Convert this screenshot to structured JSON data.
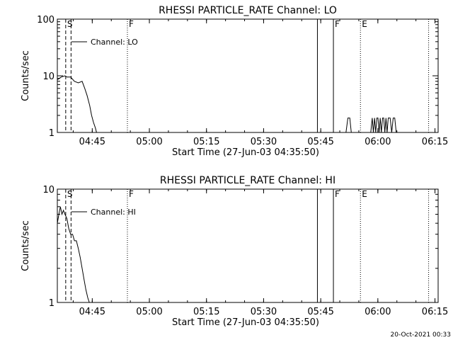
{
  "footer": {
    "timestamp": "20-Oct-2021 00:33"
  },
  "time_axis": {
    "origin_label": "Start Time (27-Jun-03 04:35:50)",
    "xlim_minutes": [
      0,
      100
    ],
    "tick_labels": [
      "04:45",
      "05:00",
      "05:15",
      "05:30",
      "05:45",
      "06:00",
      "06:15"
    ],
    "tick_minutes": [
      9.17,
      24.17,
      39.17,
      54.17,
      69.17,
      84.17,
      99.17
    ]
  },
  "markers": [
    {
      "label": "S",
      "minute": 2.2,
      "style": "dashed"
    },
    {
      "label": "",
      "minute": 3.6,
      "style": "dashed"
    },
    {
      "label": "F",
      "minute": 18.4,
      "style": "dotted"
    },
    {
      "label": "",
      "minute": 68.3,
      "style": "solid"
    },
    {
      "label": "F",
      "minute": 72.5,
      "style": "solid"
    },
    {
      "label": "E",
      "minute": 79.6,
      "style": "dotted"
    },
    {
      "label": "",
      "minute": 97.5,
      "style": "dotted"
    }
  ],
  "chart_data": [
    {
      "type": "line",
      "title": "RHESSI PARTICLE_RATE Channel: LO",
      "xlabel": "Start Time (27-Jun-03 04:35:50)",
      "ylabel": "Counts/sec",
      "y_scale": "log",
      "ylim": [
        1,
        100
      ],
      "y_ticks": [
        1,
        10,
        100
      ],
      "y_tick_labels": [
        "1",
        "10",
        "100"
      ],
      "legend": {
        "position": "top-left",
        "entries": [
          "Channel: LO"
        ]
      },
      "series": [
        {
          "name": "Channel: LO",
          "segments": [
            {
              "x": [
                0.0,
                1.0,
                2.0,
                2.5,
                3.5,
                4.5,
                5.5,
                6.5,
                7.2,
                7.8,
                8.5,
                9.0,
                9.5,
                10.0,
                10.3
              ],
              "y": [
                8.5,
                9.5,
                10.0,
                9.5,
                9.5,
                8.0,
                7.5,
                8.0,
                6.0,
                4.5,
                3.0,
                2.0,
                1.5,
                1.2,
                1.0
              ]
            },
            {
              "x": [
                75.8,
                76.3,
                76.8,
                77.2
              ],
              "y": [
                1.0,
                1.8,
                1.8,
                1.0
              ]
            },
            {
              "x": [
                82.3,
                82.7,
                83.0,
                83.3,
                83.6,
                83.9,
                84.2,
                84.5,
                84.8,
                85.1,
                85.4,
                85.7,
                86.0,
                86.3,
                86.6,
                86.9,
                87.4,
                87.8,
                88.2,
                88.6,
                89.0
              ],
              "y": [
                1.0,
                1.8,
                1.0,
                1.8,
                1.0,
                1.8,
                1.8,
                1.0,
                1.8,
                1.0,
                1.8,
                1.8,
                1.0,
                1.8,
                1.0,
                1.8,
                1.8,
                1.0,
                1.8,
                1.8,
                1.0
              ]
            }
          ]
        }
      ],
      "annotations": [
        "S",
        "F",
        "F",
        "E"
      ]
    },
    {
      "type": "line",
      "title": "RHESSI PARTICLE_RATE Channel: HI",
      "xlabel": "Start Time (27-Jun-03 04:35:50)",
      "ylabel": "Counts/sec",
      "y_scale": "log",
      "ylim": [
        1,
        10
      ],
      "y_ticks": [
        1,
        10
      ],
      "y_tick_labels": [
        "1",
        "10"
      ],
      "legend": {
        "position": "top-left",
        "entries": [
          "Channel: HI"
        ]
      },
      "series": [
        {
          "name": "Channel: HI",
          "segments": [
            {
              "x": [
                0.0,
                0.4,
                0.8,
                1.2,
                1.6,
                2.0,
                2.5,
                3.0,
                3.5,
                4.0,
                4.5,
                5.0,
                5.5,
                6.0,
                6.5,
                7.0,
                7.5,
                8.0,
                8.4
              ],
              "y": [
                5.0,
                6.0,
                7.0,
                6.0,
                6.5,
                6.0,
                5.5,
                4.5,
                4.0,
                4.0,
                3.5,
                3.5,
                3.0,
                2.5,
                2.0,
                1.6,
                1.3,
                1.1,
                1.0
              ]
            }
          ]
        }
      ],
      "annotations": [
        "S",
        "F",
        "F",
        "E"
      ]
    }
  ]
}
